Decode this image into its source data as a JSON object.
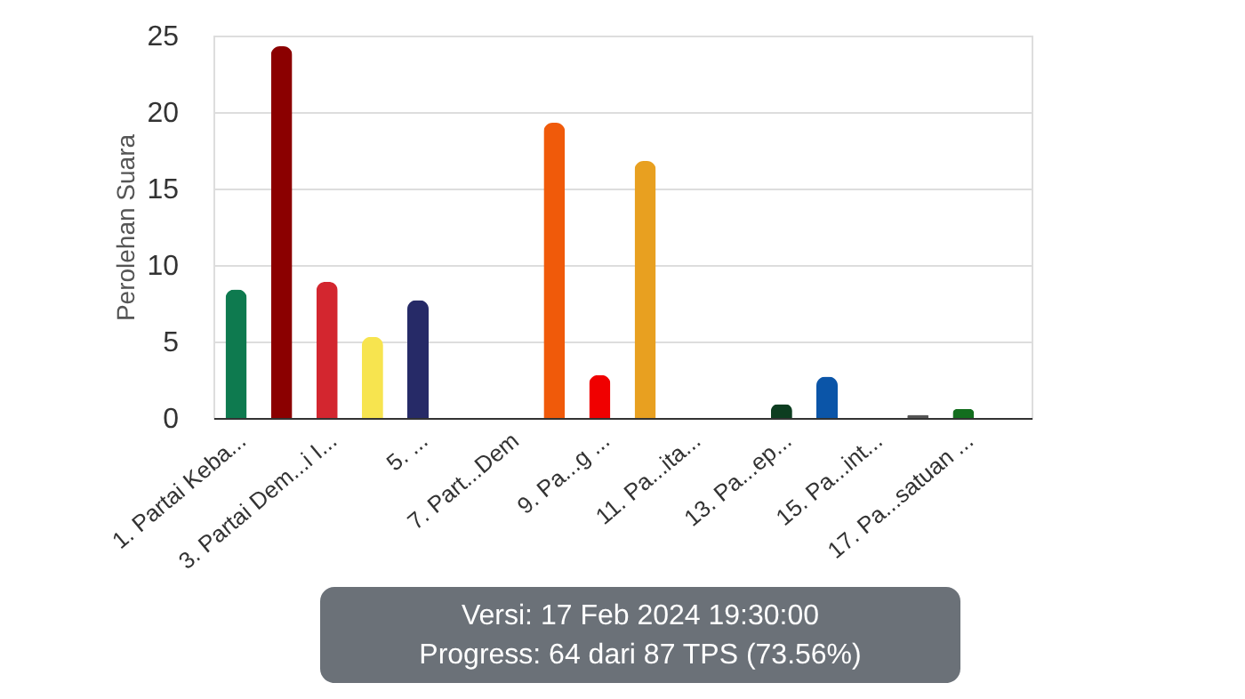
{
  "chart_data": {
    "type": "bar",
    "ylabel": "Perolehan Suara",
    "categories": [
      "1. Partai Keba...",
      null,
      "3. Partai Dem...i I...",
      null,
      "5. ...",
      null,
      "7. Part...Dem",
      null,
      "9. Pa...g ...",
      null,
      "11. Pa...ita...",
      null,
      "13. Pa...ep...",
      null,
      "15. Pa...int...",
      null,
      "17. Pa...satuan ...",
      null
    ],
    "values": [
      8.4,
      24.3,
      8.9,
      5.3,
      7.7,
      0,
      0,
      19.3,
      2.8,
      16.8,
      0,
      0,
      0.9,
      2.7,
      0,
      0.2,
      0.6,
      0
    ],
    "colors": [
      "#0e7a4f",
      "#8b0000",
      "#d3262f",
      "#f7e44f",
      "#262a67",
      "#999999",
      "#999999",
      "#f05a0a",
      "#f00000",
      "#e8a020",
      "#999999",
      "#999999",
      "#0d3d20",
      "#0b55a8",
      "#999999",
      "#555555",
      "#136e1e",
      "#999999"
    ],
    "ylim": [
      0,
      25
    ],
    "yticks": [
      0,
      5,
      10,
      15,
      20,
      25
    ],
    "grid": "y",
    "annotations": [
      "Versi: 17 Feb 2024 19:30:00",
      "Progress: 64 dari 87 TPS (73.56%)"
    ]
  }
}
